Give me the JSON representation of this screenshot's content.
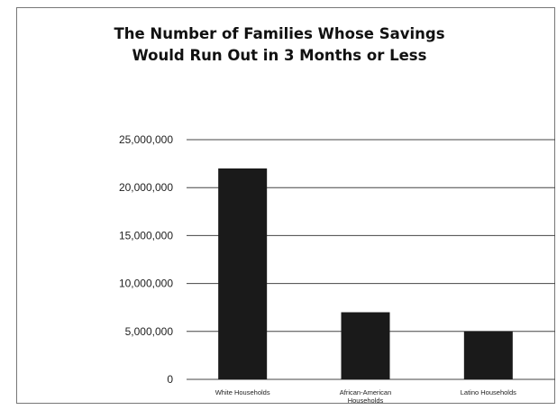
{
  "chart_data": {
    "type": "bar",
    "title": "The Number of Families Whose Savings",
    "subtitle": "Would Run Out in 3 Months or Less",
    "categories": [
      [
        "White Households"
      ],
      [
        "African-American",
        "Households"
      ],
      [
        "Latino Households"
      ]
    ],
    "values": [
      22000000,
      7000000,
      5000000
    ],
    "yticks": [
      "0",
      "5,000,000",
      "10,000,000",
      "15,000,000",
      "20,000,000",
      "25,000,000"
    ],
    "ylim": [
      0,
      25000000
    ],
    "xlabel": "",
    "ylabel": "",
    "grid": true,
    "legend": "none",
    "bar_color": "#1a1a1a",
    "grid_color": "#444444"
  }
}
